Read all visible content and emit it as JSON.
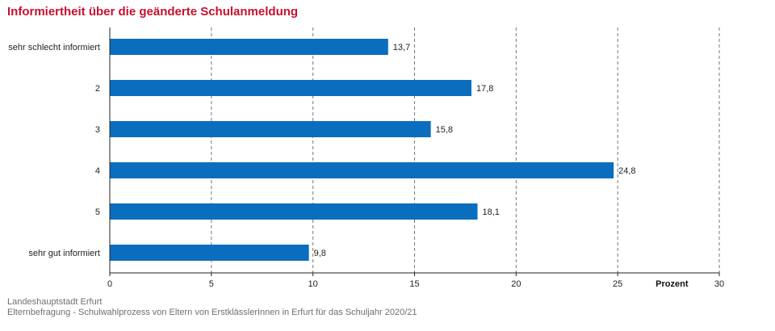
{
  "title": "Informiertheit über die geänderte Schulanmeldung",
  "footer": {
    "source": "Landeshauptstadt Erfurt",
    "note": "Elternbefragung - Schulwahlprozess von Eltern von ErstklässlerInnen in Erfurt für das Schuljahr 2020/21"
  },
  "chart_data": {
    "type": "bar",
    "orientation": "horizontal",
    "categories": [
      "sehr schlecht informiert",
      "2",
      "3",
      "4",
      "5",
      "sehr gut informiert"
    ],
    "values": [
      13.7,
      17.8,
      15.8,
      24.8,
      18.1,
      9.8
    ],
    "value_labels": [
      "13,7",
      "17,8",
      "15,8",
      "24,8",
      "18,1",
      "9,8"
    ],
    "xlim": [
      0,
      30
    ],
    "xticks": [
      0,
      5,
      10,
      15,
      20,
      25,
      30
    ],
    "xlabel": "Prozent",
    "grid": "vertical dashed",
    "bar_color": "#0b6dbd",
    "grid_color": "#777777"
  }
}
